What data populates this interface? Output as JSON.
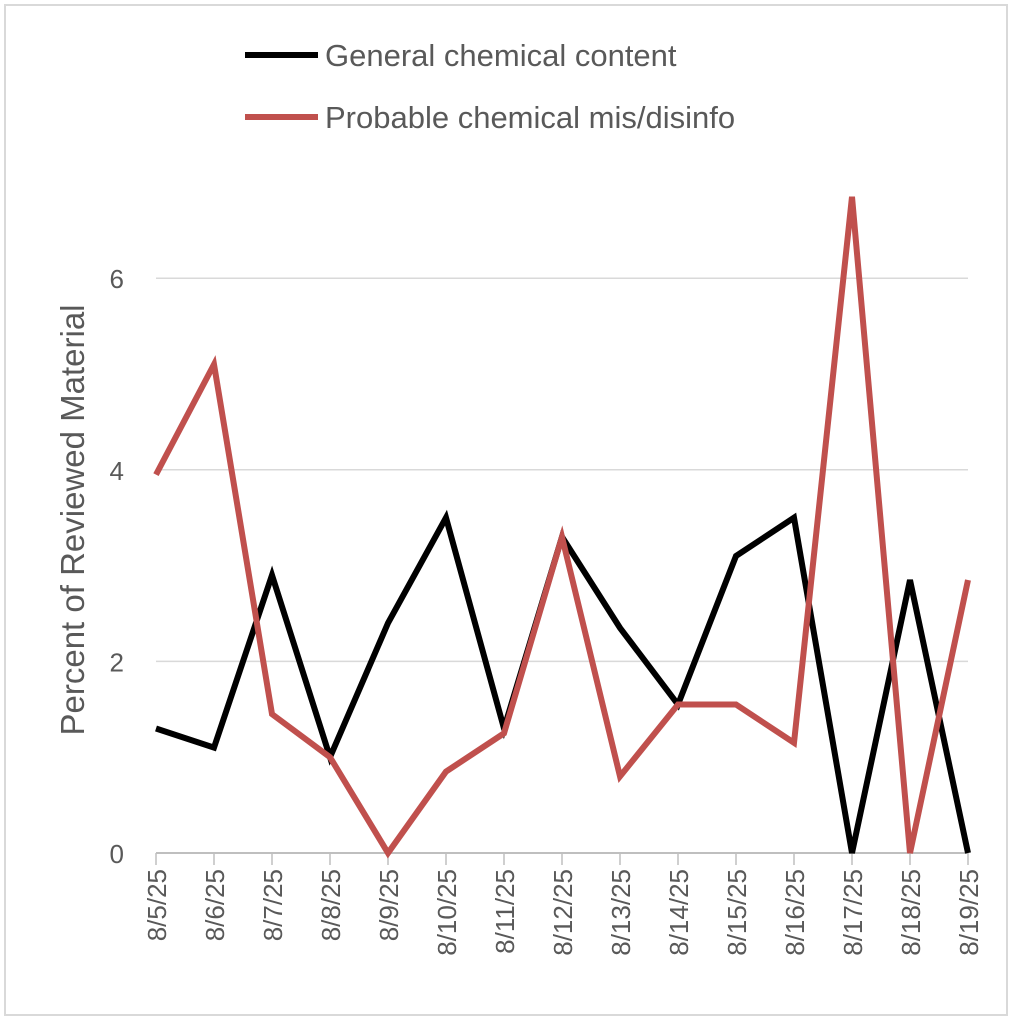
{
  "chart_data": {
    "type": "line",
    "title": "",
    "xlabel": "",
    "ylabel": "Percent of Reviewed Material",
    "categories": [
      "8/5/25",
      "8/6/25",
      "8/7/25",
      "8/8/25",
      "8/9/25",
      "8/10/25",
      "8/11/25",
      "8/12/25",
      "8/13/25",
      "8/14/25",
      "8/15/25",
      "8/16/25",
      "8/17/25",
      "8/18/25",
      "8/19/25"
    ],
    "ylim": [
      0,
      7
    ],
    "yticks": [
      0,
      2,
      4,
      6
    ],
    "grid": true,
    "legend_position": "top",
    "series": [
      {
        "name": "General chemical content",
        "color": "#000000",
        "values": [
          1.3,
          1.1,
          2.9,
          1.0,
          2.4,
          3.5,
          1.3,
          3.3,
          2.35,
          1.55,
          3.1,
          3.5,
          0.0,
          2.85,
          0.0
        ]
      },
      {
        "name": "Probable chemical mis/disinfo",
        "color": "#c0504d",
        "values": [
          3.95,
          5.1,
          1.45,
          1.0,
          0.0,
          0.85,
          1.25,
          3.3,
          0.8,
          1.55,
          1.55,
          1.15,
          6.85,
          0.0,
          2.85
        ]
      }
    ]
  }
}
